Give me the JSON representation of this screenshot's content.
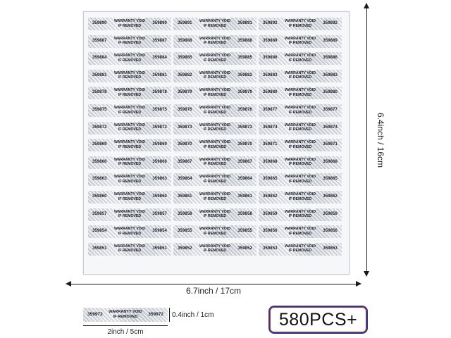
{
  "sheet": {
    "label_top_text": "WARRANTY VOID",
    "label_bottom_text": "IF REMOVED",
    "columns": [
      [
        "359890",
        "359887",
        "359884",
        "359881",
        "359878",
        "359875",
        "359872",
        "359869",
        "359866",
        "359863",
        "359860",
        "359857",
        "359854",
        "359851"
      ],
      [
        "359891",
        "359888",
        "359885",
        "359882",
        "359879",
        "359876",
        "359873",
        "359870",
        "359867",
        "359864",
        "359861",
        "359858",
        "359855",
        "359852"
      ],
      [
        "359892",
        "359889",
        "359886",
        "359883",
        "359880",
        "359877",
        "359874",
        "359871",
        "359868",
        "359865",
        "359862",
        "359859",
        "359856",
        "359853"
      ]
    ]
  },
  "dimensions": {
    "height_label": "6.4inch / 16cm",
    "width_label": "6.7inch / 17cm"
  },
  "sample": {
    "number": "359972",
    "top_text": "WARRANTY VOID",
    "bottom_text": "IF REMOVED",
    "height_label": "0.4inch / 1cm",
    "width_label": "2inch / 5cm"
  },
  "badge": {
    "text": "580PCS+",
    "border_color": "#2b3a8f"
  }
}
